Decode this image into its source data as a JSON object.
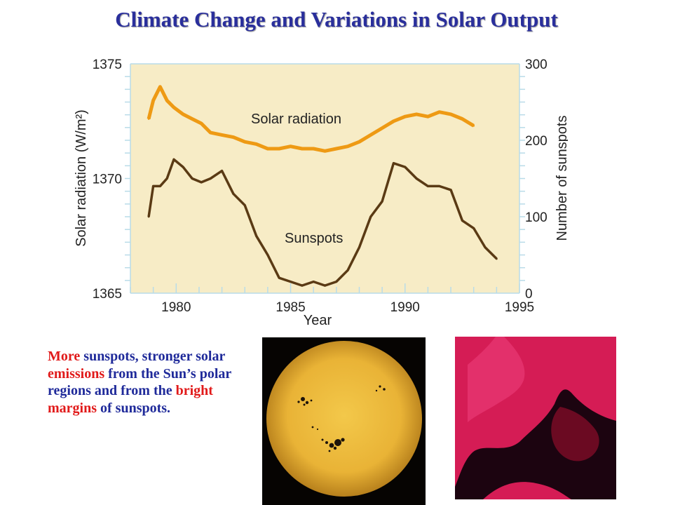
{
  "title": "Climate Change and Variations in Solar Output",
  "colors": {
    "title": "#2a2f9c",
    "plot_bg": "#f7ecc6",
    "grid": "#b9dce8",
    "solar_line": "#ee9a14",
    "sunspot_line": "#5a3a14",
    "caption_blue": "#1f2a9a",
    "caption_red": "#e11a1a"
  },
  "chart_data": {
    "type": "line",
    "xlabel": "Year",
    "ylabel_left": "Solar radiation (W/m²)",
    "ylabel_right": "Number of sunspots",
    "xlim": [
      1978,
      1995
    ],
    "ylim_left": [
      1365,
      1375
    ],
    "ylim_right": [
      0,
      300
    ],
    "x_ticks": [
      "1980",
      "1985",
      "1990",
      "1995"
    ],
    "y_ticks_left": [
      "1365",
      "1370",
      "1375"
    ],
    "y_ticks_right": [
      "0",
      "100",
      "200",
      "300"
    ],
    "series": [
      {
        "name": "Solar radiation",
        "axis": "left",
        "x": [
          1978.8,
          1979.0,
          1979.3,
          1979.6,
          1979.9,
          1980.3,
          1980.7,
          1981.1,
          1981.5,
          1982.0,
          1982.5,
          1983.0,
          1983.5,
          1984.0,
          1984.5,
          1985.0,
          1985.5,
          1986.0,
          1986.5,
          1987.0,
          1987.5,
          1988.0,
          1988.5,
          1989.0,
          1989.5,
          1990.0,
          1990.5,
          1991.0,
          1991.5,
          1992.0,
          1992.5,
          1993.0
        ],
        "y": [
          1372.6,
          1373.4,
          1374.0,
          1373.4,
          1373.1,
          1372.8,
          1372.6,
          1372.4,
          1372.0,
          1371.9,
          1371.8,
          1371.6,
          1371.5,
          1371.3,
          1371.3,
          1371.4,
          1371.3,
          1371.3,
          1371.2,
          1371.3,
          1371.4,
          1371.6,
          1371.9,
          1372.2,
          1372.5,
          1372.7,
          1372.8,
          1372.7,
          1372.9,
          1372.8,
          1372.6,
          1372.3
        ]
      },
      {
        "name": "Sunspots",
        "axis": "right",
        "x": [
          1978.8,
          1979.0,
          1979.3,
          1979.6,
          1979.9,
          1980.3,
          1980.7,
          1981.1,
          1981.5,
          1982.0,
          1982.5,
          1983.0,
          1983.5,
          1984.0,
          1984.5,
          1985.0,
          1985.5,
          1986.0,
          1986.5,
          1987.0,
          1987.5,
          1988.0,
          1988.5,
          1989.0,
          1989.5,
          1990.0,
          1990.5,
          1991.0,
          1991.5,
          1992.0,
          1992.5,
          1993.0,
          1993.5,
          1994.0
        ],
        "y": [
          100,
          140,
          140,
          150,
          175,
          165,
          150,
          145,
          150,
          160,
          130,
          115,
          75,
          50,
          20,
          15,
          10,
          15,
          10,
          15,
          30,
          60,
          100,
          120,
          170,
          165,
          150,
          140,
          140,
          135,
          95,
          85,
          60,
          45
        ]
      }
    ],
    "annotations": [
      "Solar radiation",
      "Sunspots"
    ]
  },
  "caption": {
    "segments": [
      {
        "text": "More",
        "highlight": true
      },
      {
        "text": " sunspots, stronger solar ",
        "highlight": false
      },
      {
        "text": "emissions",
        "highlight": true
      },
      {
        "text": " from the Sun’s polar regions and from the ",
        "highlight": false
      },
      {
        "text": "bright margins",
        "highlight": true
      },
      {
        "text": " of sunspots.",
        "highlight": false
      }
    ]
  },
  "photos": {
    "sun": "sun-with-sunspots-photo",
    "corona": "solar-polar-emission-photo"
  }
}
